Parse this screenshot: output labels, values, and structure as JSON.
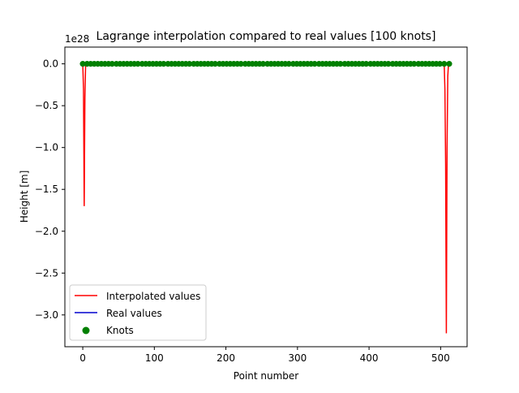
{
  "chart_data": {
    "type": "line",
    "title": "Lagrange interpolation compared to real values [100 knots]",
    "xlabel": "Point number",
    "ylabel": "Height [m]",
    "y_offset_text": "1e28",
    "xlim": [
      -25,
      537
    ],
    "ylim": [
      -3.38,
      0.2
    ],
    "x_ticks": [
      0,
      100,
      200,
      300,
      400,
      500
    ],
    "y_ticks": [
      0.0,
      -0.5,
      -1.0,
      -1.5,
      -2.0,
      -2.5,
      -3.0
    ],
    "x_tick_labels": [
      "0",
      "100",
      "200",
      "300",
      "400",
      "500"
    ],
    "y_tick_labels": [
      "0.0",
      "−0.5",
      "−1.0",
      "−1.5",
      "−2.0",
      "−2.5",
      "−3.0"
    ],
    "grid": false,
    "legend_position": "lower-left",
    "series": [
      {
        "name": "Interpolated values",
        "color": "#ff0000",
        "x": [
          0,
          1,
          2,
          3,
          4,
          6,
          10,
          50,
          100,
          200,
          300,
          400,
          500,
          503,
          505,
          506,
          507,
          508,
          509,
          510,
          511,
          512
        ],
        "y": [
          0,
          -0.3,
          -1.7,
          -0.4,
          0,
          0,
          0,
          0,
          0,
          0,
          0,
          0,
          0,
          0,
          0,
          -0.3,
          -1.2,
          -3.22,
          -1.0,
          -0.15,
          0,
          0
        ]
      },
      {
        "name": "Real values",
        "color": "#0000cd",
        "x": [
          0,
          512
        ],
        "y": [
          0,
          0
        ]
      },
      {
        "name": "Knots",
        "color": "#008000",
        "marker": "circle",
        "x": [
          0,
          6,
          11,
          16,
          21,
          26,
          31,
          36,
          41,
          47,
          52,
          57,
          62,
          67,
          72,
          77,
          83,
          88,
          93,
          98,
          103,
          108,
          113,
          119,
          124,
          129,
          134,
          139,
          144,
          149,
          155,
          160,
          165,
          170,
          175,
          180,
          185,
          191,
          196,
          201,
          206,
          211,
          216,
          221,
          227,
          232,
          237,
          242,
          247,
          252,
          258,
          263,
          268,
          273,
          278,
          283,
          288,
          294,
          299,
          304,
          309,
          314,
          319,
          324,
          330,
          335,
          340,
          345,
          350,
          355,
          360,
          366,
          371,
          376,
          381,
          386,
          391,
          396,
          402,
          407,
          412,
          417,
          422,
          427,
          433,
          438,
          443,
          448,
          453,
          458,
          463,
          469,
          474,
          479,
          484,
          489,
          494,
          499,
          505,
          512
        ],
        "y": [
          0,
          0,
          0,
          0,
          0,
          0,
          0,
          0,
          0,
          0,
          0,
          0,
          0,
          0,
          0,
          0,
          0,
          0,
          0,
          0,
          0,
          0,
          0,
          0,
          0,
          0,
          0,
          0,
          0,
          0,
          0,
          0,
          0,
          0,
          0,
          0,
          0,
          0,
          0,
          0,
          0,
          0,
          0,
          0,
          0,
          0,
          0,
          0,
          0,
          0,
          0,
          0,
          0,
          0,
          0,
          0,
          0,
          0,
          0,
          0,
          0,
          0,
          0,
          0,
          0,
          0,
          0,
          0,
          0,
          0,
          0,
          0,
          0,
          0,
          0,
          0,
          0,
          0,
          0,
          0,
          0,
          0,
          0,
          0,
          0,
          0,
          0,
          0,
          0,
          0,
          0,
          0,
          0,
          0,
          0,
          0,
          0,
          0,
          0,
          0
        ]
      }
    ]
  }
}
